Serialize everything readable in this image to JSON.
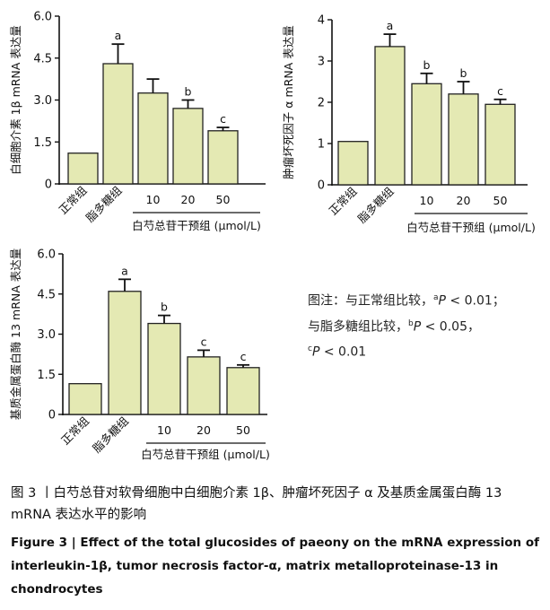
{
  "charts": [
    {
      "type": "bar",
      "ylabel": "白细胞介素 1β mRNA 表达量",
      "categories": [
        "正常组",
        "脂多糖组",
        "10",
        "20",
        "50"
      ],
      "values": [
        1.1,
        4.3,
        3.25,
        2.7,
        1.9
      ],
      "errors": [
        0,
        0.7,
        0.5,
        0.3,
        0.12
      ],
      "sig": [
        "",
        "a",
        "",
        "b",
        "c"
      ],
      "ylim": [
        0,
        6
      ],
      "yticks": [
        "0",
        "1.5",
        "3.0",
        "4.5",
        "6.0"
      ],
      "group_label": "白芍总苷干预组 (μmol/L)"
    },
    {
      "type": "bar",
      "ylabel": "肿瘤坏死因子 α mRNA 表达量",
      "categories": [
        "正常组",
        "脂多糖组",
        "10",
        "20",
        "50"
      ],
      "values": [
        1.05,
        3.35,
        2.45,
        2.2,
        1.95
      ],
      "errors": [
        0,
        0.3,
        0.25,
        0.3,
        0.12
      ],
      "sig": [
        "",
        "a",
        "b",
        "b",
        "c"
      ],
      "ylim": [
        0,
        4
      ],
      "yticks": [
        "0",
        "1",
        "2",
        "3",
        "4"
      ],
      "group_label": "白芍总苷干预组 (μmol/L)"
    },
    {
      "type": "bar",
      "ylabel": "基质金属蛋白酶 13 mRNA 表达量",
      "categories": [
        "正常组",
        "脂多糖组",
        "10",
        "20",
        "50"
      ],
      "values": [
        1.15,
        4.6,
        3.4,
        2.15,
        1.75
      ],
      "errors": [
        0,
        0.45,
        0.3,
        0.25,
        0.1
      ],
      "sig": [
        "",
        "a",
        "b",
        "c",
        "c"
      ],
      "ylim": [
        0,
        6
      ],
      "yticks": [
        "0",
        "1.5",
        "3.0",
        "4.5",
        "6.0"
      ],
      "group_label": "白芍总苷干预组 (μmol/L)"
    }
  ],
  "chart_data": [
    {
      "type": "bar",
      "categories": [
        "正常组",
        "脂多糖组",
        "10",
        "20",
        "50"
      ],
      "values": [
        1.1,
        4.3,
        3.25,
        2.7,
        1.9
      ],
      "error_bars": [
        0,
        0.7,
        0.5,
        0.3,
        0.12
      ],
      "significance": [
        "",
        "a",
        "",
        "b",
        "c"
      ],
      "xlabel": "白芍总苷干预组 (μmol/L)",
      "ylabel": "白细胞介素 1β mRNA 表达量",
      "ylim": [
        0,
        6
      ]
    },
    {
      "type": "bar",
      "categories": [
        "正常组",
        "脂多糖组",
        "10",
        "20",
        "50"
      ],
      "values": [
        1.05,
        3.35,
        2.45,
        2.2,
        1.95
      ],
      "error_bars": [
        0,
        0.3,
        0.25,
        0.3,
        0.12
      ],
      "significance": [
        "",
        "a",
        "b",
        "b",
        "c"
      ],
      "xlabel": "白芍总苷干预组 (μmol/L)",
      "ylabel": "肿瘤坏死因子 α mRNA 表达量",
      "ylim": [
        0,
        4
      ]
    },
    {
      "type": "bar",
      "categories": [
        "正常组",
        "脂多糖组",
        "10",
        "20",
        "50"
      ],
      "values": [
        1.15,
        4.6,
        3.4,
        2.15,
        1.75
      ],
      "error_bars": [
        0,
        0.45,
        0.3,
        0.25,
        0.1
      ],
      "significance": [
        "",
        "a",
        "b",
        "c",
        "c"
      ],
      "xlabel": "白芍总苷干预组 (μmol/L)",
      "ylabel": "基质金属蛋白酶 13 mRNA 表达量",
      "ylim": [
        0,
        6
      ]
    }
  ],
  "note": {
    "line1_prefix": "图注：与正常组比较，",
    "line1_sup": "a",
    "line1_p": "P",
    "line1_val": " < 0.01；",
    "line2_prefix": "与脂多糖组比较，",
    "line2_sup": "b",
    "line2_p": "P",
    "line2_val": " < 0.05，",
    "line3_sup": "c",
    "line3_p": "P",
    "line3_val": " < 0.01"
  },
  "caption": {
    "cn": "图 3  丨白芍总苷对软骨细胞中白细胞介素 1β、肿瘤坏死因子 α 及基质金属蛋白酶 13 mRNA 表达水平的影响",
    "en": "Figure 3  | Effect of the total glucosides of paeony on the mRNA expression of interleukin-1β, tumor necrosis factor-α, matrix metalloproteinase-13 in chondrocytes"
  },
  "colors": {
    "bar_fill": "#e4e9b3",
    "bar_stroke": "#222222",
    "axis": "#111111"
  }
}
